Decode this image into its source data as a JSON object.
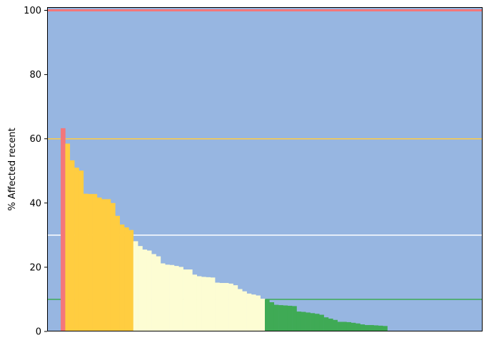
{
  "chart_data": {
    "type": "bar",
    "title": "",
    "xlabel": "",
    "ylabel": "% Affected recent",
    "ylim": [
      0,
      101
    ],
    "yticks": [
      0,
      20,
      40,
      60,
      80,
      100
    ],
    "grid": false,
    "background_color": "#97b6e1",
    "thresholds": [
      {
        "value": 100,
        "color": "#f4777a"
      },
      {
        "value": 60,
        "color": "#ffcc44"
      },
      {
        "value": 30,
        "color": "#ffffff"
      },
      {
        "value": 10,
        "color": "#3faa55"
      }
    ],
    "bar_colors": {
      "above_60": "#f4777a",
      "30_to_60": "#ffcd40",
      "10_to_30": "#fdfdd3",
      "below_10": "#3faa55"
    },
    "values": [
      63.3,
      58.5,
      53.3,
      51.0,
      50.1,
      42.9,
      42.8,
      42.8,
      41.7,
      41.2,
      41.2,
      40.0,
      36.0,
      33.3,
      32.4,
      31.6,
      28.1,
      26.6,
      25.5,
      25.2,
      24.1,
      23.4,
      21.2,
      20.8,
      20.7,
      20.4,
      20.1,
      19.3,
      19.3,
      17.7,
      17.2,
      17.0,
      16.9,
      16.8,
      15.2,
      15.1,
      15.1,
      14.9,
      14.4,
      13.2,
      12.5,
      11.8,
      11.5,
      11.2,
      10.2,
      9.9,
      9.1,
      8.3,
      8.2,
      8.1,
      8.0,
      7.9,
      6.2,
      6.1,
      5.9,
      5.7,
      5.5,
      5.2,
      4.4,
      4.0,
      3.6,
      3.0,
      3.0,
      2.9,
      2.7,
      2.5,
      2.2,
      2.0,
      2.0,
      1.9,
      1.8,
      1.7
    ],
    "empty_slots_before": 3,
    "total_slots": 96
  }
}
